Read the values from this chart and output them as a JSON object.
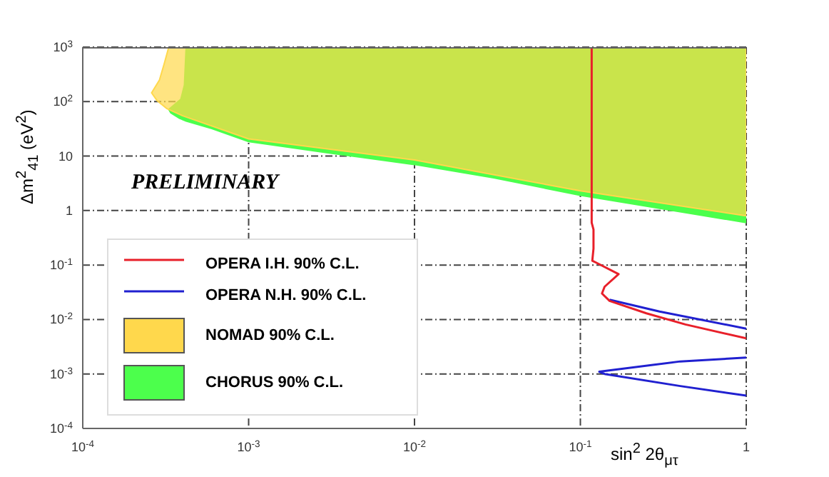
{
  "chart_data": {
    "type": "line",
    "xlabel": "sin$^{2}$ 2θ$_{μτ}$",
    "ylabel": "Δm$^{2}$$_{41}$ (eV$^{2}$)",
    "log": "xy",
    "grid": true,
    "legend": "bottom left",
    "xlim": [
      0.0001,
      1
    ],
    "ylim": [
      0.0001,
      1000
    ],
    "xticks": [
      {
        "value": 0.0001,
        "label": "10$^{-4}$"
      },
      {
        "value": 0.001,
        "label": "10$^{-3}$"
      },
      {
        "value": 0.01,
        "label": "10$^{-2}$"
      },
      {
        "value": 0.1,
        "label": "10$^{-1}$"
      },
      1
    ],
    "yticks": [
      {
        "value": 0.0001,
        "label": "10$^{-4}$"
      },
      {
        "value": 0.001,
        "label": "10$^{-3}$"
      },
      {
        "value": 0.01,
        "label": "10$^{-2}$"
      },
      {
        "value": 0.1,
        "label": "10$^{-1}$"
      },
      1,
      10,
      {
        "value": 100,
        "label": "10$^{2}$"
      },
      {
        "value": 1000,
        "label": "10$^{3}$"
      }
    ],
    "annotations": [
      "PRELIMINARY"
    ],
    "series": [
      {
        "name": "OPERA I.H. 90% C.L.",
        "color": "#e8202a",
        "x": [
          0.117,
          0.117,
          0.12,
          0.12,
          0.118,
          0.125,
          0.17,
          0.14,
          0.135,
          0.15,
          0.25,
          0.43,
          1
        ],
        "values": [
          1000,
          0.6,
          0.45,
          0.2,
          0.12,
          0.11,
          0.068,
          0.04,
          0.03,
          0.022,
          0.013,
          0.0081,
          0.0045
        ]
      },
      {
        "name": "OPERA N.H. 90% C.L.",
        "color": "#2020d0",
        "x": [
          0.15,
          0.3,
          1,
          null,
          1,
          0.4,
          0.13,
          0.14,
          0.4,
          1
        ],
        "values": [
          0.023,
          0.014,
          0.0068,
          null,
          0.002,
          0.0017,
          0.0011,
          0.001,
          0.0006,
          0.0004
        ]
      },
      {
        "name": "NOMAD 90% C.L.",
        "type": "area",
        "color": "#ffd84c",
        "x": [
          0.00033,
          0.00031,
          0.00029,
          0.00026,
          0.00028,
          0.00032,
          0.0004,
          0.001,
          0.01,
          0.1,
          1,
          1
        ],
        "values": [
          1000,
          500,
          250,
          145,
          105,
          75,
          55,
          20.7,
          8.5,
          2.3,
          0.8,
          1000
        ]
      },
      {
        "name": "CHORUS 90% C.L.",
        "type": "area",
        "color": "#4cff4c",
        "x": [
          0.00042,
          0.00041,
          0.00039,
          0.00033,
          0.00034,
          0.00038,
          0.00042,
          0.0006,
          0.001,
          0.003,
          0.01,
          0.03,
          0.1,
          0.3,
          1,
          1
        ],
        "values": [
          1000,
          200,
          110,
          72,
          62,
          50,
          44,
          32,
          18.5,
          11.5,
          7,
          4,
          1.9,
          1.1,
          0.6,
          1000
        ]
      }
    ]
  }
}
